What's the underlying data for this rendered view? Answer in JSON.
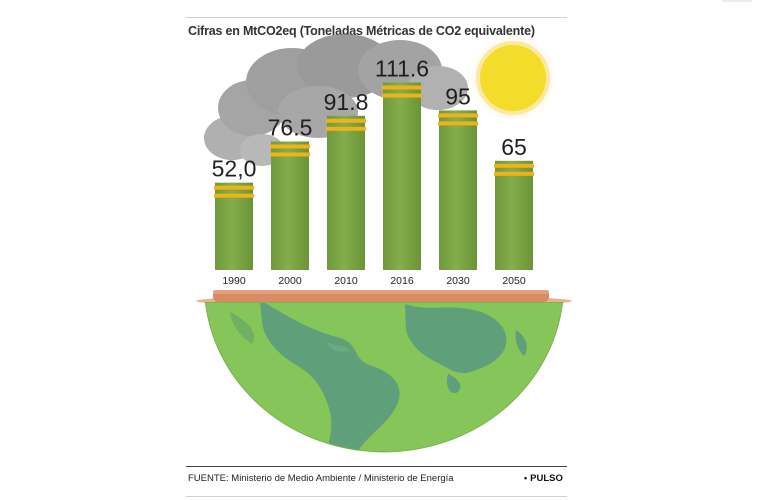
{
  "header": {
    "title": "Cifras en MtCO2eq (Toneladas Métricas de CO2 equivalente)"
  },
  "footer": {
    "source": "FUENTE: Ministerio de Medio Ambiente / Ministerio de Energía",
    "brand": "PULSO"
  },
  "colors": {
    "chimney": "#7fa845",
    "chimney_dark": "#5d8a34",
    "bands": "#f0b21a",
    "smoke": "#8a8a8a",
    "sun": "#f5e21a",
    "sun_halo": "#fbe9a3",
    "ocean": "#7cbd52",
    "land": "#5e9e79",
    "rim": "#dea079"
  },
  "icons": [
    "smoke-cloud-icon",
    "sun-icon",
    "globe-icon"
  ],
  "chart_data": {
    "type": "bar",
    "title": "Cifras en MtCO2eq (Toneladas Métricas de CO2 equivalente)",
    "categories": [
      "1990",
      "2000",
      "2010",
      "2016",
      "2030",
      "2050"
    ],
    "values": [
      52.0,
      76.5,
      91.8,
      111.6,
      95,
      65
    ],
    "value_labels": [
      "52,0",
      "76.5",
      "91.8",
      "111.6",
      "95",
      "65"
    ],
    "xlabel": "",
    "ylabel": "",
    "grid": false,
    "legend": "none"
  }
}
